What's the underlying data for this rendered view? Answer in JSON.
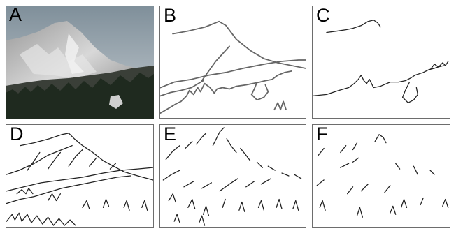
{
  "panels": [
    {
      "letter": "A",
      "kind": "photo"
    },
    {
      "letter": "B",
      "kind": "contours-major"
    },
    {
      "letter": "C",
      "kind": "contours-top"
    },
    {
      "letter": "D",
      "kind": "line-drawing-full"
    },
    {
      "letter": "E",
      "kind": "strokes-medium"
    },
    {
      "letter": "F",
      "kind": "strokes-sparse"
    }
  ],
  "colors": {
    "line": "#222222",
    "gray_line": "#666666",
    "border": "#6d6d6d",
    "sky_top": "#7f8f9a",
    "sky_bottom": "#c4cbd0",
    "forest": "#1f2a1f"
  }
}
